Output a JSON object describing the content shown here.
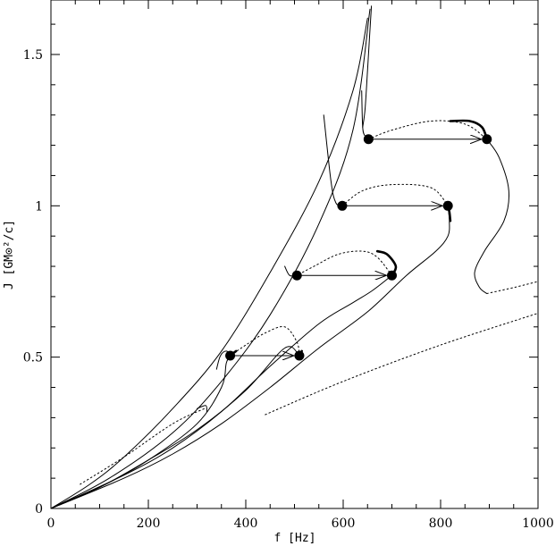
{
  "chart_data": {
    "type": "line",
    "xlabel": "f [Hz]",
    "ylabel": "J [GM⊙²/c]",
    "xlim": [
      0,
      1000
    ],
    "ylim": [
      0,
      1.68
    ],
    "x_ticks": [
      0,
      200,
      400,
      600,
      800,
      1000
    ],
    "x_tick_labels": [
      "0",
      "200",
      "400",
      "600",
      "800",
      "1000"
    ],
    "y_ticks": [
      0,
      0.5,
      1,
      1.5
    ],
    "y_tick_labels": [
      "0",
      "0.5",
      "1",
      "1.5"
    ],
    "grid": false,
    "legend": "none",
    "series": [
      {
        "style": "solid",
        "width": 1,
        "points": [
          [
            0,
            0
          ],
          [
            80,
            0.08
          ],
          [
            150,
            0.17
          ],
          [
            250,
            0.33
          ],
          [
            350,
            0.52
          ],
          [
            450,
            0.78
          ],
          [
            550,
            1.08
          ],
          [
            620,
            1.38
          ],
          [
            650,
            1.62
          ]
        ]
      },
      {
        "style": "solid",
        "width": 1,
        "points": [
          [
            0,
            0
          ],
          [
            120,
            0.1
          ],
          [
            250,
            0.25
          ],
          [
            350,
            0.42
          ],
          [
            450,
            0.64
          ],
          [
            550,
            0.94
          ],
          [
            620,
            1.25
          ],
          [
            655,
            1.65
          ]
        ]
      },
      {
        "style": "solid",
        "width": 1,
        "points": [
          [
            0,
            0
          ],
          [
            100,
            0.07
          ],
          [
            200,
            0.16
          ],
          [
            300,
            0.28
          ],
          [
            350,
            0.4
          ],
          [
            360,
            0.48
          ],
          [
            368,
            0.505
          ]
        ]
      },
      {
        "style": "solid",
        "width": 1,
        "points": [
          [
            0,
            0
          ],
          [
            100,
            0.07
          ],
          [
            200,
            0.16
          ],
          [
            300,
            0.26
          ],
          [
            400,
            0.39
          ],
          [
            480,
            0.53
          ],
          [
            510,
            0.505
          ]
        ]
      },
      {
        "style": "solid",
        "width": 1,
        "points": [
          [
            0,
            0
          ],
          [
            150,
            0.11
          ],
          [
            250,
            0.2
          ],
          [
            350,
            0.32
          ],
          [
            450,
            0.47
          ],
          [
            550,
            0.61
          ],
          [
            620,
            0.68
          ],
          [
            660,
            0.72
          ],
          [
            700,
            0.77
          ]
        ]
      },
      {
        "style": "solid",
        "width": 1,
        "points": [
          [
            0,
            0
          ],
          [
            150,
            0.1
          ],
          [
            250,
            0.18
          ],
          [
            350,
            0.28
          ],
          [
            450,
            0.4
          ],
          [
            550,
            0.53
          ],
          [
            650,
            0.65
          ],
          [
            730,
            0.77
          ],
          [
            790,
            0.85
          ],
          [
            815,
            0.9
          ],
          [
            818,
            0.95
          ],
          [
            815,
            1.0
          ]
        ]
      },
      {
        "style": "solid",
        "width": 1,
        "points": [
          [
            340,
            0.46
          ],
          [
            348,
            0.505
          ],
          [
            360,
            0.52
          ],
          [
            372,
            0.505
          ]
        ]
      },
      {
        "style": "solid",
        "width": 1,
        "points": [
          [
            480,
            0.8
          ],
          [
            490,
            0.77
          ],
          [
            505,
            0.77
          ]
        ]
      },
      {
        "style": "solid",
        "width": 1,
        "points": [
          [
            560,
            1.3
          ],
          [
            575,
            1.08
          ],
          [
            585,
            1.01
          ],
          [
            598,
            1.0
          ]
        ]
      },
      {
        "style": "solid",
        "width": 1,
        "points": [
          [
            638,
            1.38
          ],
          [
            640,
            1.26
          ],
          [
            645,
            1.23
          ],
          [
            652,
            1.22
          ]
        ]
      },
      {
        "style": "solid",
        "width": 1,
        "points": [
          [
            658,
            1.66
          ],
          [
            650,
            1.45
          ],
          [
            645,
            1.32
          ],
          [
            640,
            1.26
          ]
        ]
      },
      {
        "style": "solid",
        "width": 1,
        "points": [
          [
            895,
            1.22
          ],
          [
            920,
            1.16
          ],
          [
            940,
            1.05
          ],
          [
            930,
            0.95
          ],
          [
            890,
            0.85
          ],
          [
            870,
            0.78
          ],
          [
            880,
            0.73
          ],
          [
            895,
            0.71
          ]
        ]
      },
      {
        "style": "dotted",
        "width": 1,
        "points": [
          [
            510,
            0.505
          ],
          [
            505,
            0.55
          ],
          [
            480,
            0.6
          ],
          [
            440,
            0.58
          ],
          [
            400,
            0.54
          ],
          [
            368,
            0.505
          ]
        ]
      },
      {
        "style": "dotted",
        "width": 1,
        "points": [
          [
            700,
            0.77
          ],
          [
            670,
            0.83
          ],
          [
            640,
            0.85
          ],
          [
            590,
            0.84
          ],
          [
            540,
            0.8
          ],
          [
            505,
            0.77
          ]
        ]
      },
      {
        "style": "dotted",
        "width": 1,
        "points": [
          [
            598,
            1.0
          ],
          [
            640,
            1.05
          ],
          [
            700,
            1.07
          ],
          [
            780,
            1.06
          ],
          [
            815,
            1.0
          ]
        ]
      },
      {
        "style": "dotted",
        "width": 1,
        "points": [
          [
            652,
            1.22
          ],
          [
            700,
            1.25
          ],
          [
            780,
            1.28
          ],
          [
            850,
            1.27
          ],
          [
            895,
            1.22
          ]
        ]
      },
      {
        "style": "dotted",
        "width": 1,
        "points": [
          [
            60,
            0.08
          ],
          [
            150,
            0.17
          ],
          [
            250,
            0.28
          ],
          [
            315,
            0.33
          ]
        ]
      },
      {
        "style": "dotted",
        "width": 1,
        "points": [
          [
            895,
            0.71
          ],
          [
            950,
            0.73
          ],
          [
            1000,
            0.75
          ]
        ]
      },
      {
        "style": "dotted",
        "width": 1,
        "points": [
          [
            440,
            0.31
          ],
          [
            600,
            0.42
          ],
          [
            800,
            0.54
          ],
          [
            1000,
            0.645
          ]
        ]
      },
      {
        "style": "solid",
        "width": 1,
        "points": [
          [
            300,
            0.33
          ],
          [
            318,
            0.34
          ],
          [
            320,
            0.32
          ]
        ]
      },
      {
        "style": "bold",
        "width": 2.6,
        "points": [
          [
            700,
            0.77
          ],
          [
            708,
            0.8
          ],
          [
            690,
            0.84
          ],
          [
            670,
            0.85
          ]
        ]
      },
      {
        "style": "bold",
        "width": 2.6,
        "points": [
          [
            815,
            1.0
          ],
          [
            818,
            0.98
          ],
          [
            820,
            0.95
          ]
        ]
      },
      {
        "style": "bold",
        "width": 2.6,
        "points": [
          [
            895,
            1.22
          ],
          [
            885,
            1.26
          ],
          [
            860,
            1.28
          ],
          [
            820,
            1.28
          ]
        ]
      },
      {
        "style": "bold",
        "width": 2.6,
        "points": [
          [
            510,
            0.505
          ],
          [
            515,
            0.52
          ]
        ]
      },
      {
        "style": "bold",
        "width": 2.6,
        "points": [
          [
            368,
            0.505
          ],
          [
            380,
            0.52
          ]
        ]
      }
    ],
    "markers": [
      [
        368,
        0.505
      ],
      [
        510,
        0.505
      ],
      [
        505,
        0.77
      ],
      [
        700,
        0.77
      ],
      [
        598,
        1.0
      ],
      [
        815,
        1.0
      ],
      [
        652,
        1.22
      ],
      [
        895,
        1.22
      ]
    ],
    "arrows": [
      {
        "from": [
          368,
          0.505
        ],
        "to": [
          510,
          0.505
        ]
      },
      {
        "from": [
          505,
          0.77
        ],
        "to": [
          700,
          0.77
        ]
      },
      {
        "from": [
          598,
          1.0
        ],
        "to": [
          815,
          1.0
        ]
      },
      {
        "from": [
          652,
          1.22
        ],
        "to": [
          895,
          1.22
        ]
      }
    ]
  }
}
